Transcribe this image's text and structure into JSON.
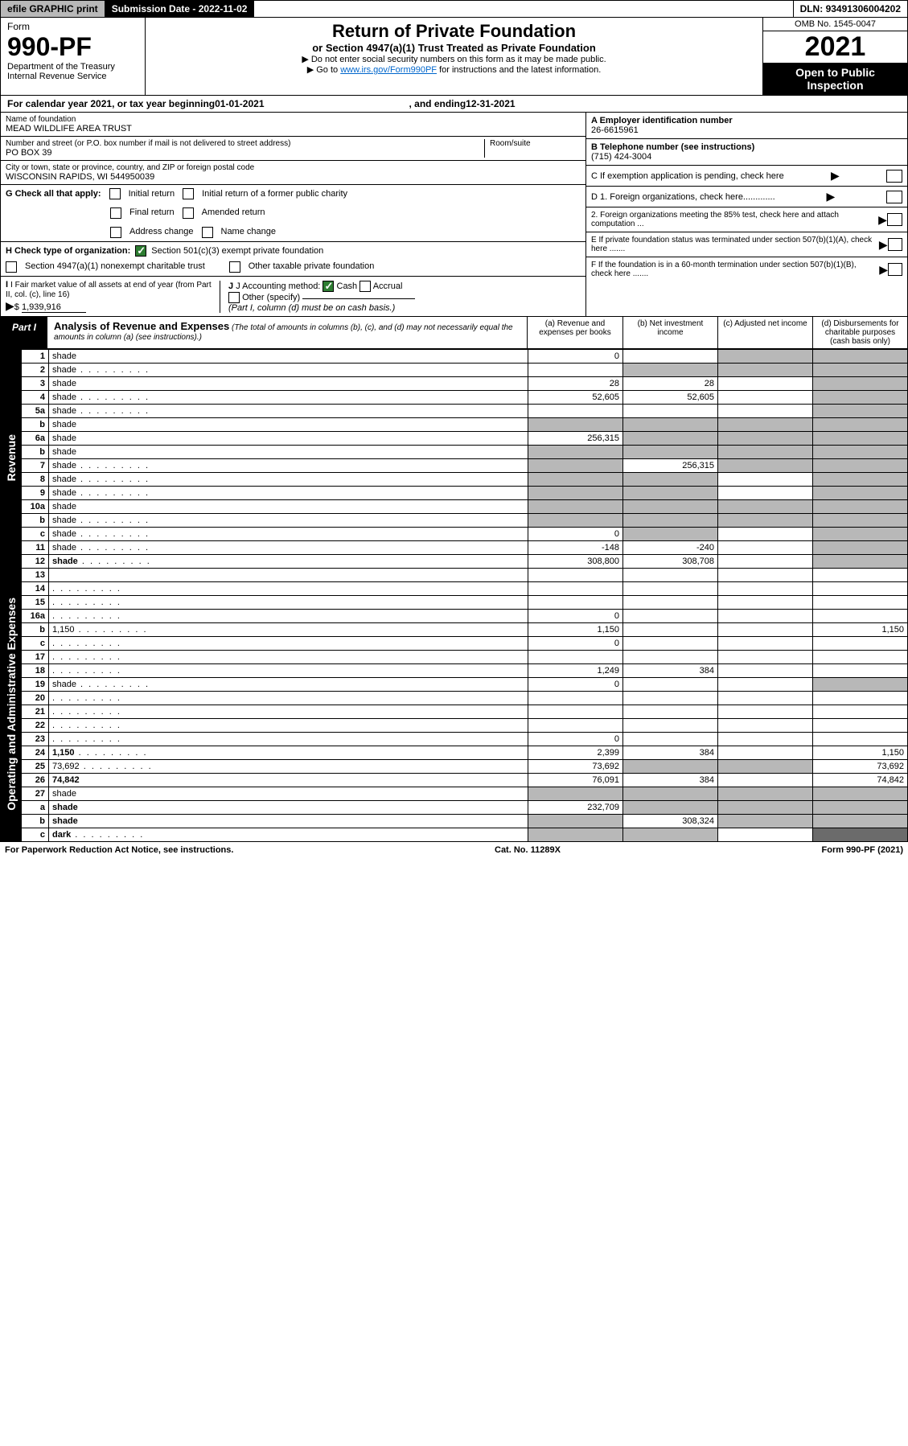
{
  "topbar": {
    "efile": "efile GRAPHIC print",
    "subdate_lbl": "Submission Date - ",
    "subdate": "2022-11-02",
    "dln_lbl": "DLN: ",
    "dln": "93491306004202"
  },
  "header": {
    "form_word": "Form",
    "form_num": "990-PF",
    "dept": "Department of the Treasury",
    "irs": "Internal Revenue Service",
    "title": "Return of Private Foundation",
    "subtitle": "or Section 4947(a)(1) Trust Treated as Private Foundation",
    "instr1": "▶ Do not enter social security numbers on this form as it may be made public.",
    "instr2_a": "▶ Go to ",
    "instr2_link": "www.irs.gov/Form990PF",
    "instr2_b": " for instructions and the latest information.",
    "omb": "OMB No. 1545-0047",
    "year": "2021",
    "open": "Open to Public Inspection"
  },
  "calrow": {
    "a": "For calendar year 2021, or tax year beginning ",
    "begin": "01-01-2021",
    "b": ", and ending ",
    "end": "12-31-2021"
  },
  "org": {
    "name_lbl": "Name of foundation",
    "name": "MEAD WILDLIFE AREA TRUST",
    "addr_lbl": "Number and street (or P.O. box number if mail is not delivered to street address)",
    "addr": "PO BOX 39",
    "room_lbl": "Room/suite",
    "city_lbl": "City or town, state or province, country, and ZIP or foreign postal code",
    "city": "WISCONSIN RAPIDS, WI  544950039",
    "ein_lbl": "A Employer identification number",
    "ein": "26-6615961",
    "tel_lbl": "B Telephone number (see instructions)",
    "tel": "(715) 424-3004",
    "c_lbl": "C If exemption application is pending, check here",
    "d1": "D 1. Foreign organizations, check here.............",
    "d2": "2. Foreign organizations meeting the 85% test, check here and attach computation ...",
    "e": "E  If private foundation status was terminated under section 507(b)(1)(A), check here .......",
    "f": "F  If the foundation is in a 60-month termination under section 507(b)(1)(B), check here .......",
    "g_lbl": "G Check all that apply:",
    "g_initial": "Initial return",
    "g_initial_former": "Initial return of a former public charity",
    "g_final": "Final return",
    "g_amended": "Amended return",
    "g_addr": "Address change",
    "g_name": "Name change",
    "h_lbl": "H Check type of organization:",
    "h_501c3": "Section 501(c)(3) exempt private foundation",
    "h_4947": "Section 4947(a)(1) nonexempt charitable trust",
    "h_other": "Other taxable private foundation",
    "i_lbl": "I Fair market value of all assets at end of year (from Part II, col. (c), line 16)",
    "i_val": "1,939,916",
    "j_lbl": "J Accounting method:",
    "j_cash": "Cash",
    "j_accrual": "Accrual",
    "j_other": "Other (specify)",
    "j_note": "(Part I, column (d) must be on cash basis.)"
  },
  "part1": {
    "tag": "Part I",
    "title": "Analysis of Revenue and Expenses",
    "note": " (The total of amounts in columns (b), (c), and (d) may not necessarily equal the amounts in column (a) (see instructions).)",
    "col_a": "(a)   Revenue and expenses per books",
    "col_b": "(b)   Net investment income",
    "col_c": "(c)   Adjusted net income",
    "col_d": "(d)   Disbursements for charitable purposes (cash basis only)",
    "side_rev": "Revenue",
    "side_exp": "Operating and Administrative Expenses"
  },
  "rows": [
    {
      "n": "1",
      "d": "shade",
      "a": "0",
      "b": "",
      "c": "shade"
    },
    {
      "n": "2",
      "d": "shade",
      "a": "",
      "b": "shade",
      "c": "shade",
      "dots": true
    },
    {
      "n": "3",
      "d": "shade",
      "a": "28",
      "b": "28",
      "c": ""
    },
    {
      "n": "4",
      "d": "shade",
      "a": "52,605",
      "b": "52,605",
      "c": "",
      "dots": true
    },
    {
      "n": "5a",
      "d": "shade",
      "a": "",
      "b": "",
      "c": "",
      "dots": true
    },
    {
      "n": "b",
      "d": "shade",
      "a": "shade",
      "b": "shade",
      "c": "shade"
    },
    {
      "n": "6a",
      "d": "shade",
      "a": "256,315",
      "b": "shade",
      "c": "shade"
    },
    {
      "n": "b",
      "d": "shade",
      "a": "shade",
      "b": "shade",
      "c": "shade"
    },
    {
      "n": "7",
      "d": "shade",
      "a": "shade",
      "b": "256,315",
      "c": "shade",
      "dots": true
    },
    {
      "n": "8",
      "d": "shade",
      "a": "shade",
      "b": "shade",
      "c": "",
      "dots": true
    },
    {
      "n": "9",
      "d": "shade",
      "a": "shade",
      "b": "shade",
      "c": "",
      "dots": true
    },
    {
      "n": "10a",
      "d": "shade",
      "a": "shade",
      "b": "shade",
      "c": "shade"
    },
    {
      "n": "b",
      "d": "shade",
      "a": "shade",
      "b": "shade",
      "c": "shade",
      "dots": true
    },
    {
      "n": "c",
      "d": "shade",
      "a": "0",
      "b": "shade",
      "c": "",
      "dots": true
    },
    {
      "n": "11",
      "d": "shade",
      "a": "-148",
      "b": "-240",
      "c": "",
      "dots": true
    },
    {
      "n": "12",
      "d": "shade",
      "a": "308,800",
      "b": "308,708",
      "c": "",
      "bold": true,
      "dots": true
    }
  ],
  "exp_rows": [
    {
      "n": "13",
      "d": "",
      "a": "",
      "b": "",
      "c": ""
    },
    {
      "n": "14",
      "d": "",
      "a": "",
      "b": "",
      "c": "",
      "dots": true
    },
    {
      "n": "15",
      "d": "",
      "a": "",
      "b": "",
      "c": "",
      "dots": true
    },
    {
      "n": "16a",
      "d": "",
      "a": "0",
      "b": "",
      "c": "",
      "dots": true
    },
    {
      "n": "b",
      "d": "1,150",
      "a": "1,150",
      "b": "",
      "c": "",
      "dots": true
    },
    {
      "n": "c",
      "d": "",
      "a": "0",
      "b": "",
      "c": "",
      "dots": true
    },
    {
      "n": "17",
      "d": "",
      "a": "",
      "b": "",
      "c": "",
      "dots": true
    },
    {
      "n": "18",
      "d": "",
      "a": "1,249",
      "b": "384",
      "c": "",
      "dots": true
    },
    {
      "n": "19",
      "d": "shade",
      "a": "0",
      "b": "",
      "c": "",
      "dots": true
    },
    {
      "n": "20",
      "d": "",
      "a": "",
      "b": "",
      "c": "",
      "dots": true
    },
    {
      "n": "21",
      "d": "",
      "a": "",
      "b": "",
      "c": "",
      "dots": true
    },
    {
      "n": "22",
      "d": "",
      "a": "",
      "b": "",
      "c": "",
      "dots": true
    },
    {
      "n": "23",
      "d": "",
      "a": "0",
      "b": "",
      "c": "",
      "dots": true
    },
    {
      "n": "24",
      "d": "1,150",
      "a": "2,399",
      "b": "384",
      "c": "",
      "bold": true,
      "dots": true
    },
    {
      "n": "25",
      "d": "73,692",
      "a": "73,692",
      "b": "shade",
      "c": "shade",
      "dots": true
    },
    {
      "n": "26",
      "d": "74,842",
      "a": "76,091",
      "b": "384",
      "c": "",
      "bold": true
    },
    {
      "n": "27",
      "d": "shade",
      "a": "shade",
      "b": "shade",
      "c": "shade"
    },
    {
      "n": "a",
      "d": "shade",
      "a": "232,709",
      "b": "shade",
      "c": "shade",
      "bold": true
    },
    {
      "n": "b",
      "d": "shade",
      "a": "shade",
      "b": "308,324",
      "c": "shade",
      "bold": true
    },
    {
      "n": "c",
      "d": "dark",
      "a": "shade",
      "b": "shade",
      "c": "",
      "bold": true,
      "dots": true
    }
  ],
  "footer": {
    "left": "For Paperwork Reduction Act Notice, see instructions.",
    "mid": "Cat. No. 11289X",
    "right": "Form 990-PF (2021)"
  }
}
